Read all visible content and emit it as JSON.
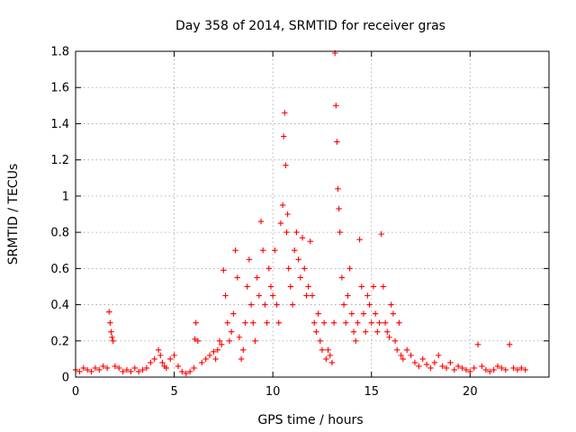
{
  "chart_data": {
    "type": "scatter",
    "title": "Day 358 of 2014, SRMTID for receiver gras",
    "xlabel": "GPS time / hours",
    "ylabel": "SRMTID / TECUs",
    "xlim": [
      0,
      24
    ],
    "ylim": [
      0,
      1.8
    ],
    "x_ticks": [
      0,
      5,
      10,
      15,
      20
    ],
    "x_tick_labels": [
      "0",
      "5",
      "10",
      "15",
      "20"
    ],
    "y_ticks": [
      0,
      0.2,
      0.4,
      0.6,
      0.8,
      1.0,
      1.2,
      1.4,
      1.6,
      1.8
    ],
    "y_tick_labels": [
      "0",
      "0.2",
      "0.4",
      "0.6",
      "0.8",
      "1",
      "1.2",
      "1.4",
      "1.6",
      "1.8"
    ],
    "grid": true,
    "marker": "plus",
    "color": "#ff0000",
    "series": [
      {
        "name": "SRMTID",
        "x": [
          0.0,
          0.2,
          0.4,
          0.6,
          0.8,
          1.0,
          1.2,
          1.4,
          1.6,
          1.7,
          1.75,
          1.8,
          1.85,
          1.9,
          2.0,
          2.2,
          2.4,
          2.6,
          2.8,
          3.0,
          3.2,
          3.4,
          3.6,
          3.8,
          4.0,
          4.2,
          4.3,
          4.4,
          4.5,
          4.6,
          4.8,
          5.0,
          5.2,
          5.4,
          5.6,
          5.8,
          6.0,
          6.05,
          6.1,
          6.2,
          6.4,
          6.6,
          6.8,
          7.0,
          7.1,
          7.2,
          7.3,
          7.4,
          7.5,
          7.6,
          7.7,
          7.8,
          7.9,
          8.0,
          8.1,
          8.2,
          8.3,
          8.4,
          8.5,
          8.6,
          8.7,
          8.8,
          8.9,
          9.0,
          9.1,
          9.2,
          9.3,
          9.4,
          9.5,
          9.6,
          9.7,
          9.8,
          9.9,
          10.0,
          10.1,
          10.2,
          10.3,
          10.4,
          10.5,
          10.55,
          10.6,
          10.65,
          10.7,
          10.75,
          10.8,
          10.9,
          11.0,
          11.1,
          11.2,
          11.3,
          11.4,
          11.5,
          11.6,
          11.7,
          11.8,
          11.9,
          12.0,
          12.1,
          12.2,
          12.3,
          12.4,
          12.5,
          12.6,
          12.7,
          12.8,
          12.9,
          13.0,
          13.1,
          13.15,
          13.2,
          13.25,
          13.3,
          13.35,
          13.4,
          13.5,
          13.6,
          13.7,
          13.8,
          13.9,
          14.0,
          14.1,
          14.2,
          14.3,
          14.4,
          14.5,
          14.6,
          14.7,
          14.8,
          14.9,
          15.0,
          15.1,
          15.2,
          15.3,
          15.4,
          15.5,
          15.6,
          15.7,
          15.8,
          15.9,
          16.0,
          16.1,
          16.2,
          16.3,
          16.4,
          16.5,
          16.6,
          16.8,
          17.0,
          17.2,
          17.4,
          17.6,
          17.8,
          18.0,
          18.2,
          18.4,
          18.6,
          18.8,
          19.0,
          19.2,
          19.4,
          19.6,
          19.8,
          20.0,
          20.2,
          20.4,
          20.6,
          20.8,
          21.0,
          21.2,
          21.4,
          21.6,
          21.8,
          22.0,
          22.2,
          22.4,
          22.6,
          22.8
        ],
        "y": [
          0.04,
          0.03,
          0.05,
          0.04,
          0.03,
          0.05,
          0.04,
          0.06,
          0.05,
          0.36,
          0.3,
          0.25,
          0.22,
          0.2,
          0.06,
          0.05,
          0.03,
          0.04,
          0.03,
          0.05,
          0.03,
          0.04,
          0.05,
          0.08,
          0.1,
          0.15,
          0.12,
          0.08,
          0.06,
          0.05,
          0.1,
          0.12,
          0.06,
          0.03,
          0.02,
          0.03,
          0.05,
          0.21,
          0.3,
          0.2,
          0.08,
          0.1,
          0.12,
          0.14,
          0.1,
          0.15,
          0.2,
          0.18,
          0.59,
          0.45,
          0.3,
          0.2,
          0.25,
          0.35,
          0.7,
          0.55,
          0.22,
          0.1,
          0.15,
          0.3,
          0.5,
          0.65,
          0.4,
          0.3,
          0.2,
          0.55,
          0.45,
          0.86,
          0.7,
          0.4,
          0.3,
          0.6,
          0.5,
          0.45,
          0.7,
          0.4,
          0.3,
          0.85,
          0.95,
          1.33,
          1.46,
          1.17,
          0.8,
          0.9,
          0.6,
          0.5,
          0.4,
          0.7,
          0.8,
          0.65,
          0.55,
          0.77,
          0.6,
          0.45,
          0.5,
          0.75,
          0.45,
          0.3,
          0.25,
          0.35,
          0.2,
          0.15,
          0.3,
          0.1,
          0.15,
          0.12,
          0.08,
          0.3,
          1.79,
          1.5,
          1.3,
          1.04,
          0.93,
          0.8,
          0.55,
          0.4,
          0.3,
          0.45,
          0.6,
          0.35,
          0.25,
          0.2,
          0.3,
          0.76,
          0.5,
          0.35,
          0.25,
          0.45,
          0.4,
          0.3,
          0.5,
          0.35,
          0.25,
          0.3,
          0.79,
          0.5,
          0.3,
          0.25,
          0.22,
          0.4,
          0.35,
          0.2,
          0.15,
          0.3,
          0.12,
          0.1,
          0.15,
          0.12,
          0.08,
          0.06,
          0.1,
          0.07,
          0.05,
          0.08,
          0.12,
          0.06,
          0.05,
          0.08,
          0.04,
          0.06,
          0.05,
          0.04,
          0.03,
          0.05,
          0.18,
          0.06,
          0.04,
          0.03,
          0.04,
          0.06,
          0.05,
          0.04,
          0.18,
          0.05,
          0.04,
          0.05,
          0.04
        ]
      }
    ]
  }
}
